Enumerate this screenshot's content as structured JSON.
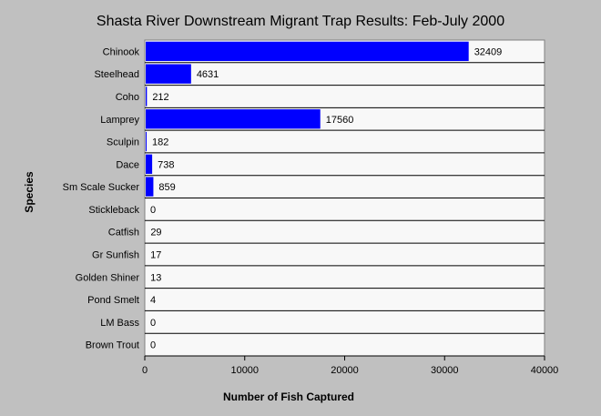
{
  "chart_data": {
    "type": "bar",
    "orientation": "horizontal",
    "title": "Shasta River Downstream Migrant Trap Results: Feb-July 2000",
    "xlabel": "Number of Fish Captured",
    "ylabel": "Species",
    "xlim": [
      0,
      40000
    ],
    "xticks": [
      0,
      10000,
      20000,
      30000,
      40000
    ],
    "grid": "horizontal-lines",
    "legend": "none",
    "categories": [
      "Chinook",
      "Steelhead",
      "Coho",
      "Lamprey",
      "Sculpin",
      "Dace",
      "Sm Scale Sucker",
      "Stickleback",
      "Catfish",
      "Gr Sunfish",
      "Golden Shiner",
      "Pond Smelt",
      "LM Bass",
      "Brown Trout"
    ],
    "values": [
      32409,
      4631,
      212,
      17560,
      182,
      738,
      859,
      0,
      29,
      17,
      13,
      4,
      0,
      0
    ],
    "bar_color": "#0000ff",
    "background_color": "#c0c0c0",
    "plot_background_color": "#f8f8f8"
  }
}
